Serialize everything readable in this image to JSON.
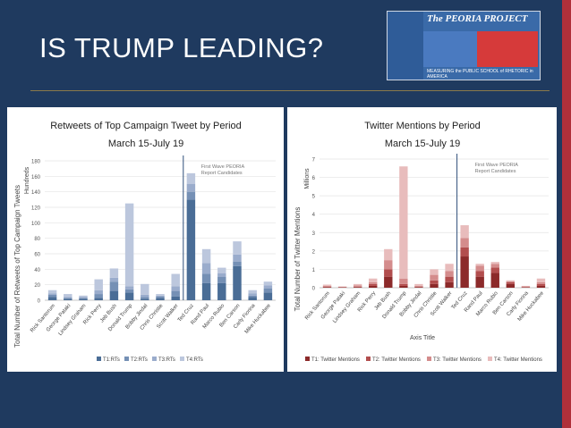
{
  "slide": {
    "title": "IS TRUMP LEADING?",
    "logo": {
      "name": "The PEORIA PROJECT",
      "tagline": "MEASURING the PUBLIC SCHOOL of RHETORIC in AMERICA"
    },
    "colors": {
      "background": "#1f3a5f",
      "accent": "#b0303a"
    }
  },
  "chart_data": [
    {
      "type": "bar",
      "stacked": true,
      "title": "Retweets of Top Campaign Tweet by Period",
      "subtitle": "March 15-July 19",
      "ylabel": "Total Number of Retweets of Top Campaign Tweets",
      "ylabel2": "Hundreds",
      "ylim": [
        0,
        180
      ],
      "yticks": [
        0,
        20,
        40,
        60,
        80,
        100,
        120,
        140,
        160,
        180
      ],
      "annotation": "First Wave PEORIA Report Candidates",
      "divider_after": "Scott Walker",
      "categories": [
        "Rick Santorum",
        "George Pataki",
        "Lindsey Graham",
        "Rick Perry",
        "Jeb Bush",
        "Donald Trump",
        "Bobby Jindal",
        "Chris Christie",
        "Scott Walker",
        "Ted Cruz",
        "Rand Paul",
        "Marco Rubio",
        "Ben Carson",
        "Carly Fiorina",
        "Mike Huckabee"
      ],
      "series": [
        {
          "name": "T1:RTs",
          "color": "#4a6d96",
          "values": [
            4,
            2,
            2,
            3,
            12,
            10,
            2,
            3,
            5,
            130,
            22,
            22,
            44,
            4,
            10
          ]
        },
        {
          "name": "T2:RTs",
          "color": "#7590b5",
          "values": [
            3,
            1,
            1,
            5,
            12,
            4,
            2,
            2,
            7,
            10,
            12,
            8,
            6,
            2,
            5
          ]
        },
        {
          "name": "T3:RTs",
          "color": "#9aaccc",
          "values": [
            2,
            1,
            1,
            5,
            5,
            4,
            3,
            1,
            6,
            10,
            14,
            5,
            9,
            3,
            4
          ]
        },
        {
          "name": "T4:RTs",
          "color": "#bcc7dd",
          "values": [
            4,
            4,
            2,
            14,
            12,
            107,
            14,
            2,
            16,
            14,
            18,
            7,
            17,
            4,
            5
          ]
        }
      ]
    },
    {
      "type": "bar",
      "stacked": true,
      "title": "Twitter Mentions by Period",
      "subtitle": "March 15-July 19",
      "ylabel": "Total Number of Twitter Mentions",
      "ylabel2": "Millions",
      "xlabel": "Axis Title",
      "ylim": [
        0,
        7
      ],
      "yticks": [
        0,
        1,
        2,
        3,
        4,
        5,
        6,
        7
      ],
      "annotation": "First Wave PEORIA Report Candidates",
      "divider_after": "Scott Walker",
      "categories": [
        "Rick Santorum",
        "George Pataki",
        "Lindsey Graham",
        "Rick Perry",
        "Jeb Bush",
        "Donald Trump",
        "Bobby Jindal",
        "Chris Christie",
        "Scott Walker",
        "Ted Cruz",
        "Rand Paul",
        "Marco Rubio",
        "Ben Carson",
        "Carly Fiorina",
        "Mike Huckabee"
      ],
      "series": [
        {
          "name": "T1: Twitter Mentions",
          "color": "#8c2a2a",
          "values": [
            0.03,
            0.02,
            0.03,
            0.1,
            0.6,
            0.1,
            0.03,
            0.2,
            0.3,
            1.7,
            0.6,
            0.8,
            0.2,
            0.02,
            0.1
          ]
        },
        {
          "name": "T2: Twitter Mentions",
          "color": "#b24e4e",
          "values": [
            0.03,
            0.01,
            0.03,
            0.1,
            0.4,
            0.1,
            0.03,
            0.2,
            0.3,
            0.5,
            0.3,
            0.3,
            0.1,
            0.02,
            0.1
          ]
        },
        {
          "name": "T3: Twitter Mentions",
          "color": "#d48c8c",
          "values": [
            0.04,
            0.02,
            0.07,
            0.1,
            0.5,
            0.3,
            0.04,
            0.3,
            0.3,
            0.5,
            0.3,
            0.2,
            0.05,
            0.03,
            0.1
          ]
        },
        {
          "name": "T4: Twitter Mentions",
          "color": "#e8bcbc",
          "values": [
            0.07,
            0.02,
            0.07,
            0.2,
            0.6,
            6.1,
            0.1,
            0.3,
            0.4,
            0.7,
            0.1,
            0.1,
            0.05,
            0.03,
            0.2
          ]
        }
      ]
    }
  ]
}
